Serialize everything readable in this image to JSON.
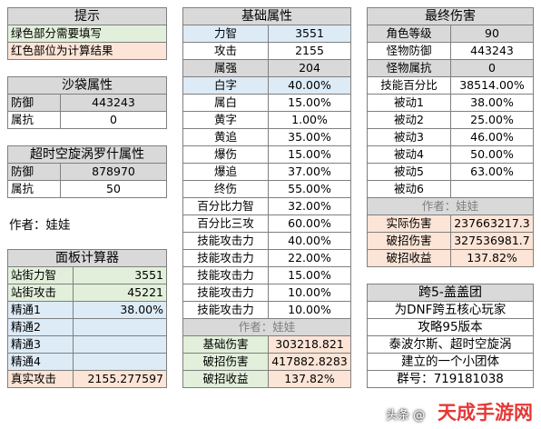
{
  "tips": {
    "title": "提示",
    "green_note": "绿色部分需要填写",
    "red_note": "红色部位为计算结果"
  },
  "sandbag": {
    "title": "沙袋属性",
    "rows": [
      {
        "label": "防御",
        "value": "443243"
      },
      {
        "label": "属抗",
        "value": "0"
      }
    ]
  },
  "vortex": {
    "title": "超时空旋涡罗什属性",
    "rows": [
      {
        "label": "防御",
        "value": "878970"
      },
      {
        "label": "属抗",
        "value": "50"
      }
    ]
  },
  "author_note": "作者：娃娃",
  "panel": {
    "title": "面板计算器",
    "rows": [
      {
        "label": "站街力智",
        "value": "3551"
      },
      {
        "label": "站街攻击",
        "value": "45221"
      },
      {
        "label": "精通1",
        "value": "38.00%"
      },
      {
        "label": "精通2",
        "value": ""
      },
      {
        "label": "精通3",
        "value": ""
      },
      {
        "label": "精通4",
        "value": ""
      },
      {
        "label": "真实攻击",
        "value": "2155.277597"
      }
    ]
  },
  "base": {
    "title": "基础属性",
    "rows": [
      {
        "label": "力智",
        "value": "3551"
      },
      {
        "label": "攻击",
        "value": "2155"
      },
      {
        "label": "属强",
        "value": "204"
      },
      {
        "label": "白字",
        "value": "40.00%"
      },
      {
        "label": "属白",
        "value": "15.00%"
      },
      {
        "label": "黄字",
        "value": "1.00%"
      },
      {
        "label": "黄追",
        "value": "35.00%"
      },
      {
        "label": "爆伤",
        "value": "15.00%"
      },
      {
        "label": "爆追",
        "value": "37.00%"
      },
      {
        "label": "终伤",
        "value": "55.00%"
      },
      {
        "label": "百分比力智",
        "value": "32.00%"
      },
      {
        "label": "百分比三攻",
        "value": "60.00%"
      },
      {
        "label": "技能攻击力",
        "value": "40.00%"
      },
      {
        "label": "技能攻击力",
        "value": "22.00%"
      },
      {
        "label": "技能攻击力",
        "value": "15.00%"
      },
      {
        "label": "技能攻击力",
        "value": "10.00%"
      },
      {
        "label": "技能攻击力",
        "value": "10.00%"
      }
    ],
    "author": "作者：娃娃",
    "results": [
      {
        "label": "基础伤害",
        "value": "303218.821"
      },
      {
        "label": "破招伤害",
        "value": "417882.8283"
      },
      {
        "label": "破招收益",
        "value": "137.82%"
      }
    ]
  },
  "final": {
    "title": "最终伤害",
    "rows": [
      {
        "label": "角色等级",
        "value": "90"
      },
      {
        "label": "怪物防御",
        "value": "443243"
      },
      {
        "label": "怪物属抗",
        "value": "0"
      },
      {
        "label": "技能百分比",
        "value": "38514.00%"
      },
      {
        "label": "被动1",
        "value": "38.00%"
      },
      {
        "label": "被动2",
        "value": "25.00%"
      },
      {
        "label": "被动3",
        "value": "46.00%"
      },
      {
        "label": "被动4",
        "value": "50.00%"
      },
      {
        "label": "被动5",
        "value": "63.00%"
      },
      {
        "label": "被动6",
        "value": ""
      }
    ],
    "author": "作者：娃娃",
    "results": [
      {
        "label": "实际伤害",
        "value": "237663217.3"
      },
      {
        "label": "破招伤害",
        "value": "327536981.7"
      },
      {
        "label": "破招收益",
        "value": "137.82%"
      }
    ]
  },
  "group": {
    "title": "跨5-盖盖团",
    "lines": [
      "为DNF跨五核心玩家",
      "攻略95版本",
      "泰波尔斯、超时空旋涡",
      "建立的一个小团体",
      "群号：719181038"
    ]
  },
  "watermark": {
    "left": "头条 @",
    "right": "天成手游网"
  }
}
